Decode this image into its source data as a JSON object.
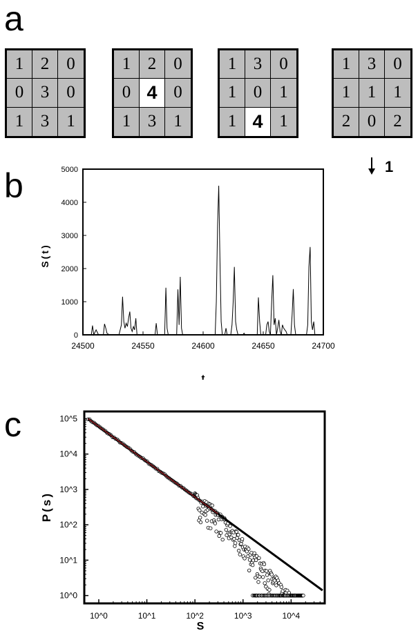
{
  "panels": {
    "a": "a",
    "b": "b",
    "c": "c"
  },
  "grids": [
    {
      "cells": [
        "1",
        "2",
        "0",
        "0",
        "3",
        "0",
        "1",
        "3",
        "1"
      ],
      "highlight": -1
    },
    {
      "cells": [
        "1",
        "2",
        "0",
        "0",
        "4",
        "0",
        "1",
        "3",
        "1"
      ],
      "highlight": 4
    },
    {
      "cells": [
        "1",
        "3",
        "0",
        "1",
        "0",
        "1",
        "1",
        "4",
        "1"
      ],
      "highlight": 7
    },
    {
      "cells": [
        "1",
        "3",
        "0",
        "1",
        "1",
        "1",
        "2",
        "0",
        "2"
      ],
      "highlight": -1
    }
  ],
  "toppling": {
    "arrow": "↓",
    "count": "1"
  },
  "chart_data": [
    {
      "type": "line",
      "xlabel": "t",
      "ylabel": "S(t)",
      "xlim": [
        24500,
        24700
      ],
      "ylim": [
        0,
        5000
      ],
      "xticks": [
        24500,
        24550,
        24600,
        24650,
        24700
      ],
      "yticks": [
        0,
        1000,
        2000,
        3000,
        4000,
        5000
      ],
      "x": [
        24500,
        24507,
        24508,
        24509,
        24511,
        24513,
        24517,
        24518,
        24519,
        24520,
        24522,
        24530,
        24532,
        24533,
        24534,
        24535,
        24536,
        24537,
        24538,
        24539,
        24540,
        24541,
        24542,
        24543,
        24544,
        24545,
        24546,
        24547,
        24548,
        24560,
        24561,
        24562,
        24563,
        24568,
        24569,
        24570,
        24571,
        24572,
        24578,
        24579,
        24580,
        24581,
        24582,
        24583,
        24584,
        24598,
        24601,
        24604,
        24606,
        24608,
        24610,
        24611,
        24612,
        24613,
        24614,
        24615,
        24616,
        24618,
        24619,
        24620,
        24623,
        24624,
        24625,
        24626,
        24627,
        24628,
        24629,
        24633,
        24634,
        24635,
        24645,
        24646,
        24647,
        24648,
        24652,
        24653,
        24654,
        24655,
        24656,
        24657,
        24658,
        24659,
        24660,
        24661,
        24662,
        24663,
        24664,
        24665,
        24666,
        24667,
        24668,
        24669,
        24670,
        24673,
        24674,
        24675,
        24676,
        24677,
        24686,
        24687,
        24688,
        24689,
        24690,
        24691,
        24692,
        24693,
        24694,
        24700
      ],
      "y": [
        0,
        0,
        280,
        0,
        150,
        0,
        0,
        330,
        200,
        50,
        0,
        0,
        300,
        1150,
        400,
        200,
        350,
        250,
        500,
        700,
        200,
        100,
        250,
        150,
        500,
        0,
        0,
        0,
        0,
        0,
        350,
        0,
        0,
        0,
        1420,
        200,
        0,
        0,
        0,
        1370,
        300,
        1750,
        200,
        0,
        0,
        0,
        0,
        0,
        0,
        0,
        0,
        1000,
        3300,
        4500,
        2200,
        400,
        0,
        0,
        200,
        0,
        0,
        300,
        1000,
        2050,
        400,
        150,
        0,
        0,
        50,
        0,
        0,
        1130,
        400,
        0,
        0,
        300,
        400,
        100,
        0,
        1000,
        1800,
        300,
        500,
        0,
        200,
        450,
        100,
        0,
        300,
        200,
        150,
        100,
        0,
        0,
        600,
        1380,
        300,
        0,
        0,
        300,
        2050,
        2650,
        400,
        150,
        400,
        0,
        0,
        0
      ]
    },
    {
      "type": "scatter",
      "scale": "log-log",
      "xlabel": "S",
      "ylabel": "P(s)",
      "xlim": [
        0.5,
        50000
      ],
      "ylim": [
        0.6,
        160000
      ],
      "xticks": [
        "10^0",
        "10^1",
        "10^2",
        "10^3",
        "10^4"
      ],
      "yticks": [
        "10^0",
        "10^1",
        "10^2",
        "10^3",
        "10^4",
        "10^5"
      ],
      "fit_line": [
        [
          0.6,
          100000
        ],
        [
          45000,
          1.4
        ]
      ],
      "marker_color": "#000000",
      "fit_color": "#000000",
      "fit_overlay_color": "#c0272d"
    }
  ]
}
